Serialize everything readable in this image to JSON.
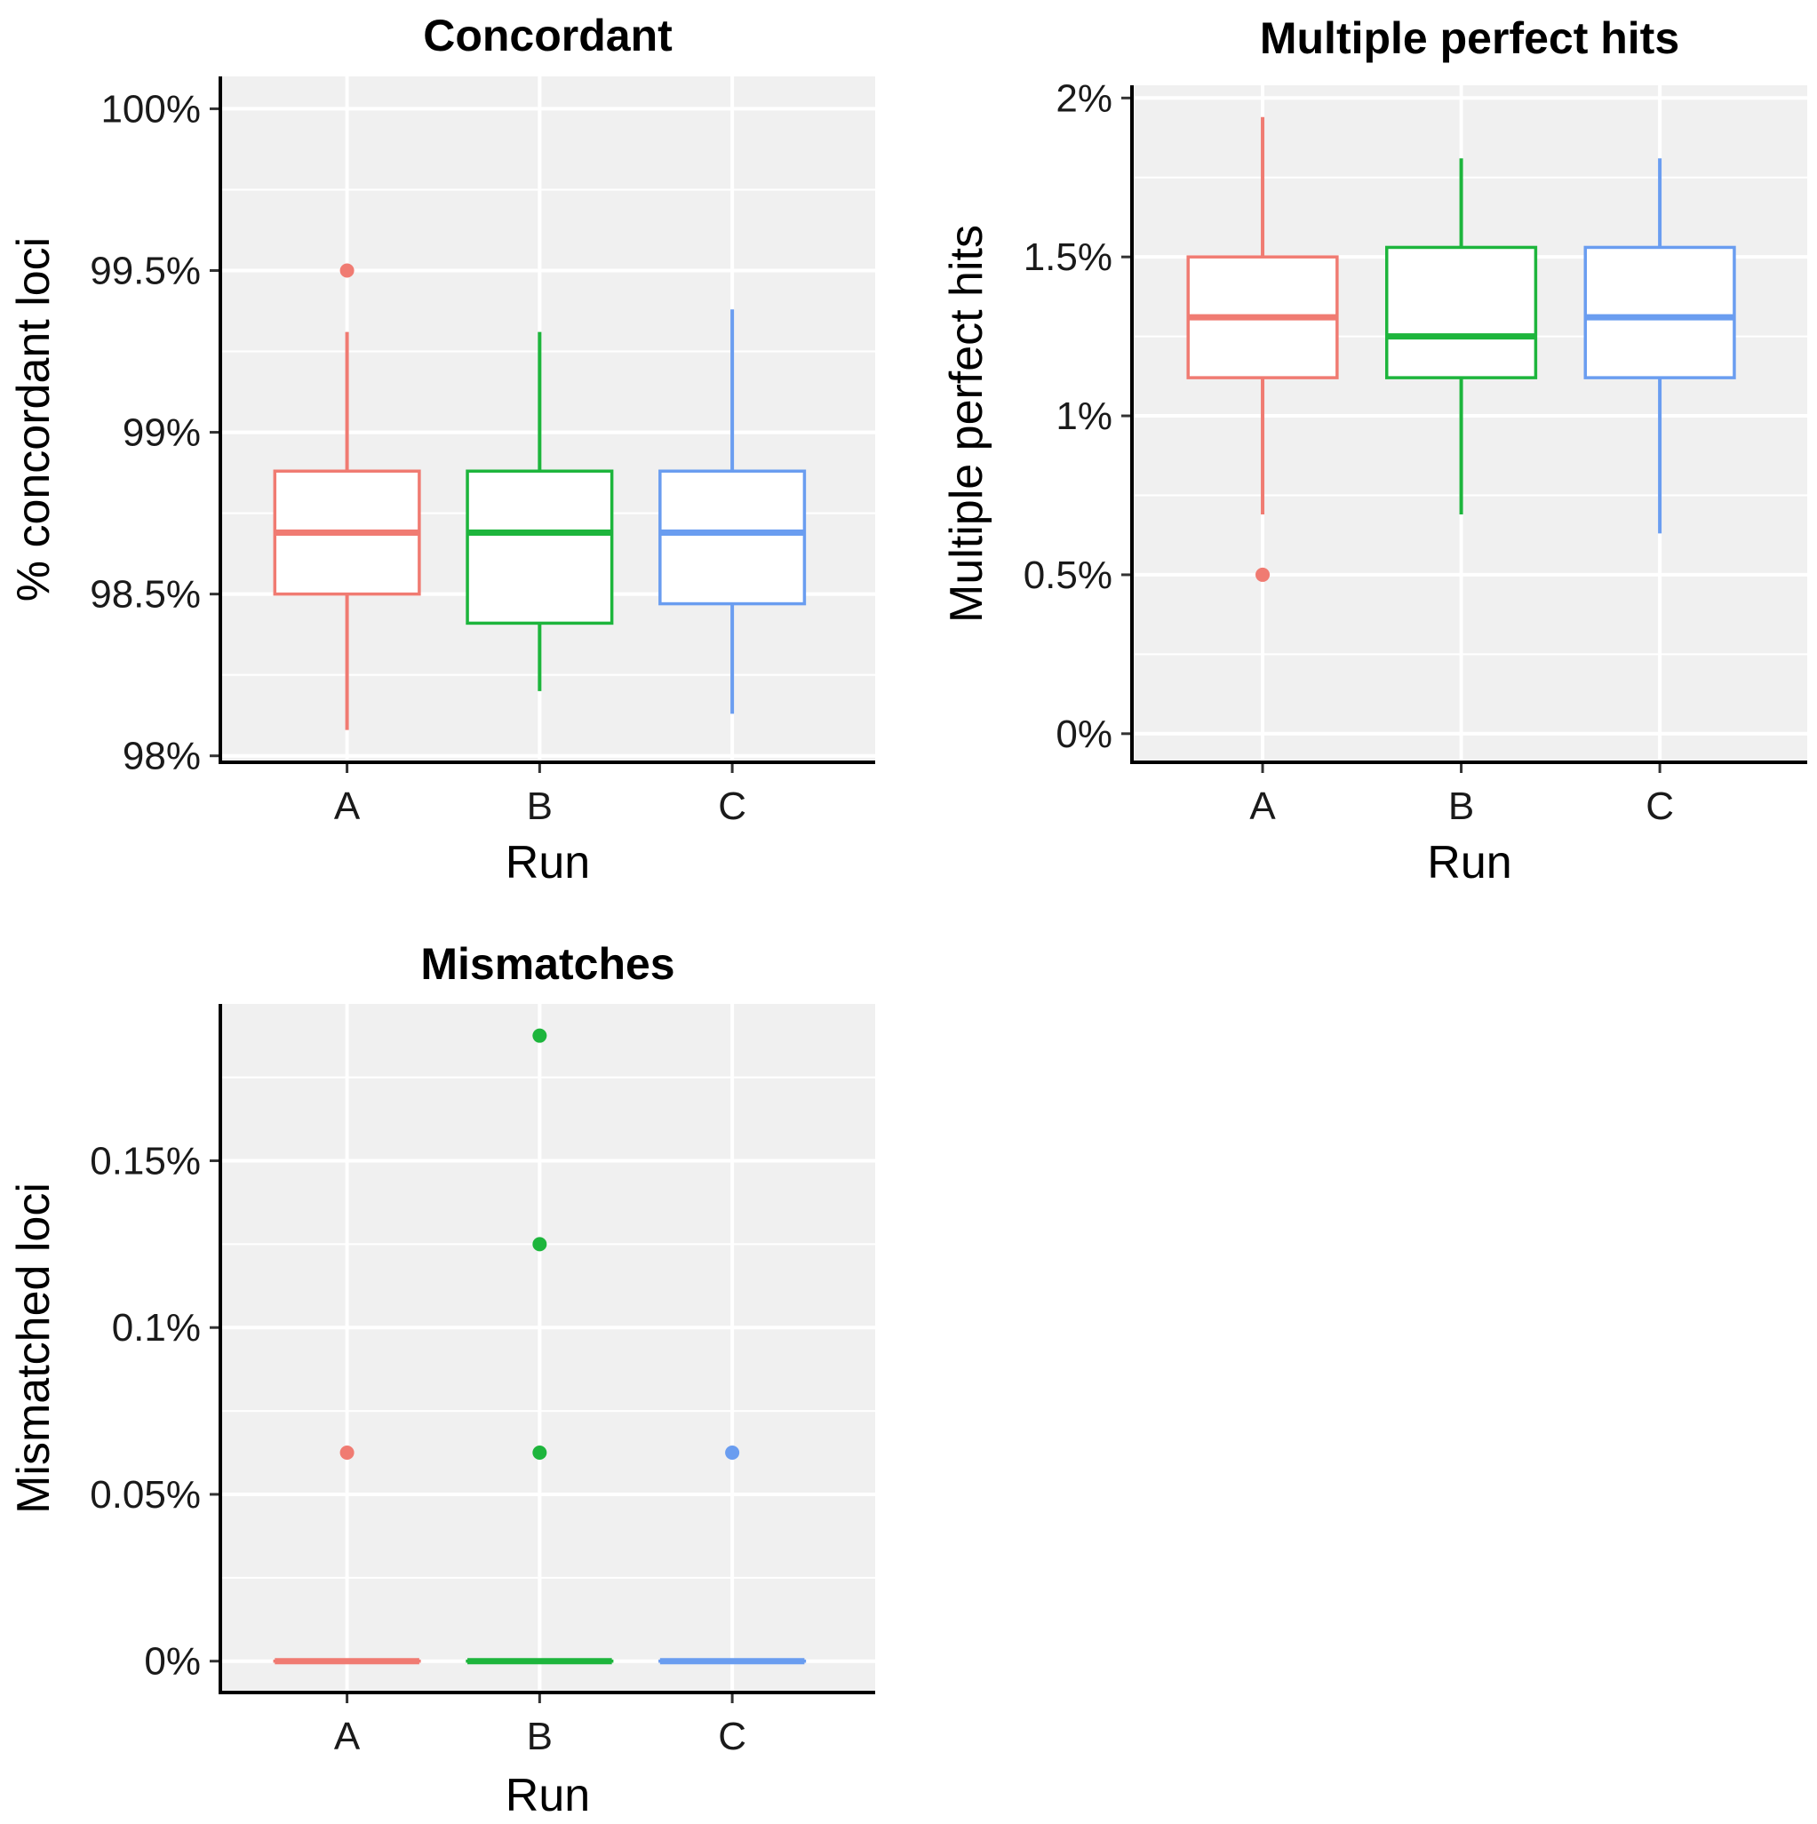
{
  "figure": {
    "background": "#ffffff",
    "panel_background": "#f0f0f0",
    "gridline_color": "#ffffff",
    "axis_line_color": "#000000"
  },
  "chart_data": [
    {
      "type": "boxplot",
      "title": "Concordant",
      "xlabel": "Run",
      "ylabel": "% concordant loci",
      "categories": [
        "A",
        "B",
        "C"
      ],
      "colors": [
        "#f07b72",
        "#1db53c",
        "#6a9df0"
      ],
      "ylim": [
        97.98,
        100.1
      ],
      "yticks": [
        98,
        98.5,
        99,
        99.5,
        100
      ],
      "yticklabels": [
        "98%",
        "98.5%",
        "99%",
        "99.5%",
        "100%"
      ],
      "boxes": [
        {
          "category": "A",
          "min": 98.08,
          "q1": 98.5,
          "median": 98.69,
          "q3": 98.88,
          "max": 99.31,
          "outliers": [
            99.5
          ]
        },
        {
          "category": "B",
          "min": 98.2,
          "q1": 98.41,
          "median": 98.69,
          "q3": 98.88,
          "max": 99.31,
          "outliers": []
        },
        {
          "category": "C",
          "min": 98.13,
          "q1": 98.47,
          "median": 98.69,
          "q3": 98.88,
          "max": 99.38,
          "outliers": []
        }
      ]
    },
    {
      "type": "boxplot",
      "title": "Multiple perfect hits",
      "xlabel": "Run",
      "ylabel": "Multiple perfect hits",
      "categories": [
        "A",
        "B",
        "C"
      ],
      "colors": [
        "#f07b72",
        "#1db53c",
        "#6a9df0"
      ],
      "ylim": [
        -0.09,
        2.04
      ],
      "yticks": [
        0,
        0.5,
        1,
        1.5,
        2
      ],
      "yticklabels": [
        "0%",
        "0.5%",
        "1%",
        "1.5%",
        "2%"
      ],
      "boxes": [
        {
          "category": "A",
          "min": 0.69,
          "q1": 1.12,
          "median": 1.31,
          "q3": 1.5,
          "max": 1.94,
          "outliers": [
            0.5
          ]
        },
        {
          "category": "B",
          "min": 0.69,
          "q1": 1.12,
          "median": 1.25,
          "q3": 1.53,
          "max": 1.81,
          "outliers": []
        },
        {
          "category": "C",
          "min": 0.63,
          "q1": 1.12,
          "median": 1.31,
          "q3": 1.53,
          "max": 1.81,
          "outliers": []
        }
      ]
    },
    {
      "type": "boxplot",
      "title": "Mismatches",
      "xlabel": "Run",
      "ylabel": "Mismatched loci",
      "categories": [
        "A",
        "B",
        "C"
      ],
      "colors": [
        "#f07b72",
        "#1db53c",
        "#6a9df0"
      ],
      "ylim": [
        -0.0094,
        0.197
      ],
      "yticks": [
        0,
        0.05,
        0.1,
        0.15
      ],
      "yticklabels": [
        "0%",
        "0.05%",
        "0.1%",
        "0.15%"
      ],
      "boxes": [
        {
          "category": "A",
          "min": 0,
          "q1": 0,
          "median": 0,
          "q3": 0,
          "max": 0,
          "outliers": [
            0.0625
          ]
        },
        {
          "category": "B",
          "min": 0,
          "q1": 0,
          "median": 0,
          "q3": 0,
          "max": 0,
          "outliers": [
            0.0625,
            0.125,
            0.1875
          ]
        },
        {
          "category": "C",
          "min": 0,
          "q1": 0,
          "median": 0,
          "q3": 0,
          "max": 0,
          "outliers": [
            0.0625
          ]
        }
      ]
    }
  ]
}
